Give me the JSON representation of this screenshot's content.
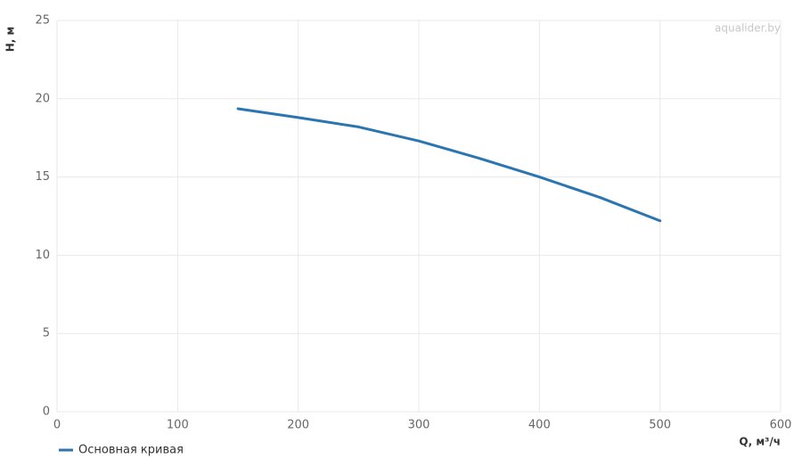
{
  "chart_data": {
    "type": "line",
    "watermark": "aqualider.by",
    "x_label": "Q, м³/ч",
    "y_label": "H, м",
    "x": [
      150,
      200,
      250,
      300,
      350,
      400,
      450,
      500
    ],
    "series": [
      {
        "name": "Основная кривая",
        "color": "#2b75b0",
        "values": [
          19.36,
          18.8,
          18.2,
          17.3,
          16.2,
          15.0,
          13.7,
          12.2
        ]
      }
    ],
    "xlim": [
      0,
      600
    ],
    "xticks": [
      0,
      100,
      200,
      300,
      400,
      500,
      600
    ],
    "ylim": [
      0,
      25
    ],
    "yticks": [
      0,
      5,
      10,
      15,
      20,
      25
    ],
    "grid": true,
    "legend": "bottom-left"
  }
}
